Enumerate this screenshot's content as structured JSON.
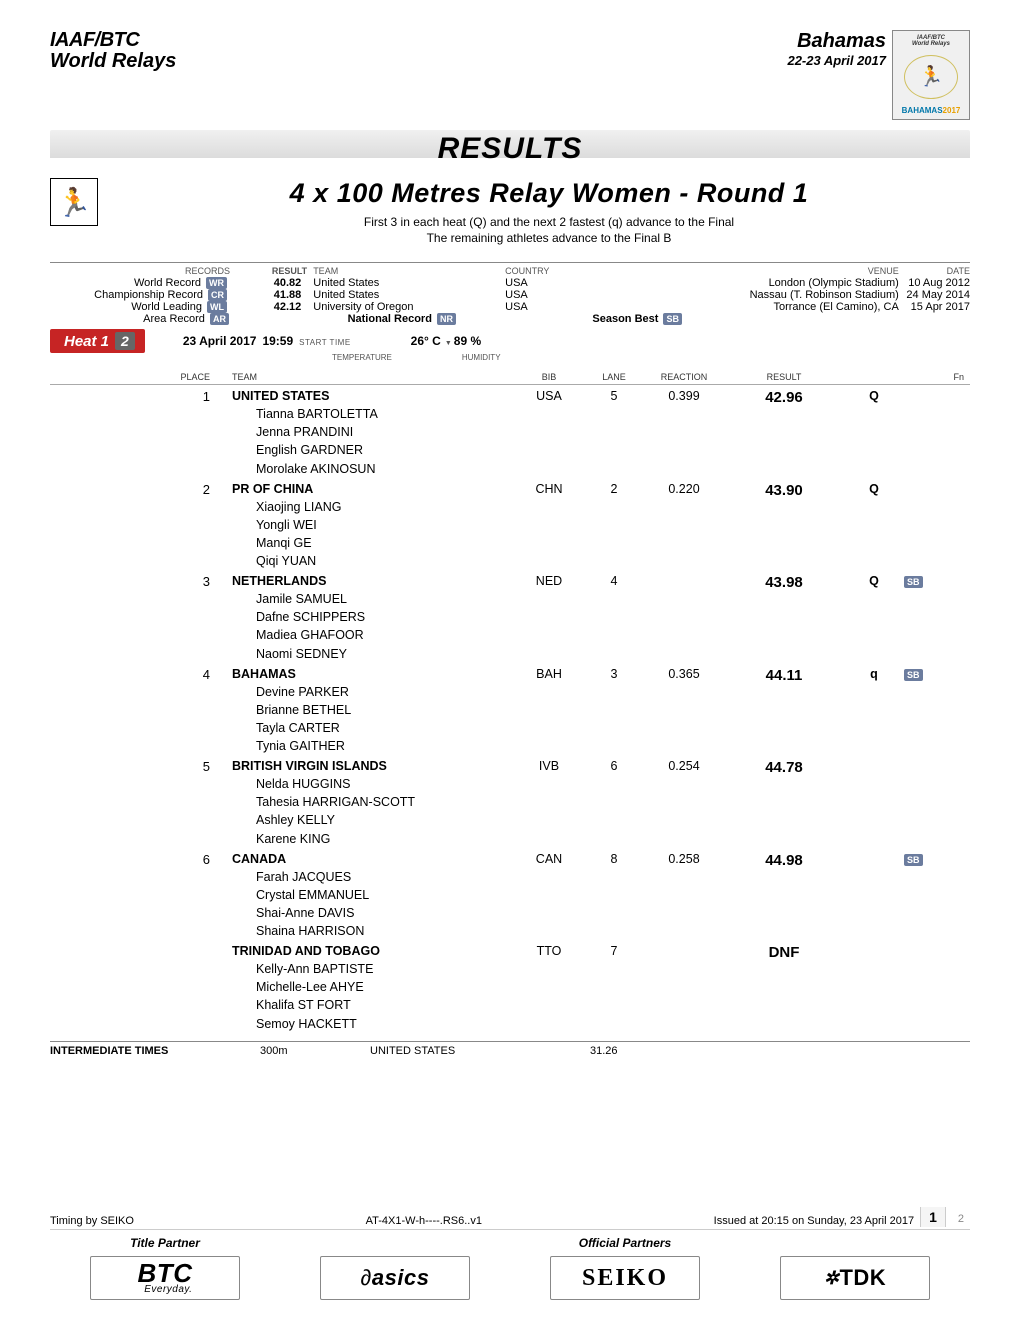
{
  "header": {
    "logo_line1": "IAAF/BTC",
    "logo_line2": "World Relays",
    "location": "Bahamas",
    "dates": "22-23 April 2017",
    "emblem_top1": "IAAF/BTC",
    "emblem_top2": "World Relays",
    "emblem_bottom": "BAHAMAS",
    "emblem_year": "2017"
  },
  "titles": {
    "results": "RESULTS",
    "event": "4 x 100 Metres Relay Women - Round 1",
    "note1": "First 3 in each heat (Q) and the next 2 fastest (q) advance to the Final",
    "note2": "The remaining athletes advance to the Final B"
  },
  "records_cols": {
    "records": "RECORDS",
    "result": "RESULT",
    "team": "TEAM",
    "country": "COUNTRY",
    "venue": "VENUE",
    "date": "DATE"
  },
  "records": [
    {
      "label": "World Record",
      "badge": "WR",
      "result": "40.82",
      "team": "United States",
      "country": "USA",
      "venue": "London (Olympic Stadium)",
      "date": "10 Aug 2012"
    },
    {
      "label": "Championship Record",
      "badge": "CR",
      "result": "41.88",
      "team": "United States",
      "country": "USA",
      "venue": "Nassau (T. Robinson Stadium)",
      "date": "24 May 2014"
    },
    {
      "label": "World Leading",
      "badge": "WL",
      "result": "42.12",
      "team": "University of Oregon",
      "country": "USA",
      "venue": "Torrance (El Camino), CA",
      "date": "15 Apr 2017"
    }
  ],
  "record_extra": {
    "area": "Area Record",
    "area_badge": "AR",
    "national": "National Record",
    "national_badge": "NR",
    "season": "Season Best",
    "season_badge": "SB"
  },
  "heat": {
    "label": "Heat 1",
    "num": "2",
    "date": "23 April  2017",
    "time": "19:59",
    "time_lbl": "START TIME",
    "temp": "26° C",
    "temp_lbl": "TEMPERATURE",
    "hum": "89 %",
    "hum_lbl": "HUMIDITY"
  },
  "table_cols": {
    "place": "PLACE",
    "team": "TEAM",
    "bib": "BIB",
    "lane": "LANE",
    "reaction": "REACTION",
    "result": "RESULT",
    "fn": "Fn"
  },
  "rows": [
    {
      "place": "1",
      "team": "UNITED STATES",
      "athletes": [
        "Tianna BARTOLETTA",
        "Jenna PRANDINI",
        "English GARDNER",
        "Morolake AKINOSUN"
      ],
      "bib": "USA",
      "lane": "5",
      "reaction": "0.399",
      "result": "42.96",
      "q": "Q",
      "sb": false
    },
    {
      "place": "2",
      "team": "PR OF CHINA",
      "athletes": [
        "Xiaojing LIANG",
        "Yongli WEI",
        "Manqi GE",
        "Qiqi YUAN"
      ],
      "bib": "CHN",
      "lane": "2",
      "reaction": "0.220",
      "result": "43.90",
      "q": "Q",
      "sb": false
    },
    {
      "place": "3",
      "team": "NETHERLANDS",
      "athletes": [
        "Jamile SAMUEL",
        "Dafne SCHIPPERS",
        "Madiea GHAFOOR",
        "Naomi SEDNEY"
      ],
      "bib": "NED",
      "lane": "4",
      "reaction": "",
      "result": "43.98",
      "q": "Q",
      "sb": true
    },
    {
      "place": "4",
      "team": "BAHAMAS",
      "athletes": [
        "Devine PARKER",
        "Brianne BETHEL",
        "Tayla CARTER",
        "Tynia GAITHER"
      ],
      "bib": "BAH",
      "lane": "3",
      "reaction": "0.365",
      "result": "44.11",
      "q": "q",
      "sb": true
    },
    {
      "place": "5",
      "team": "BRITISH VIRGIN ISLANDS",
      "athletes": [
        "Nelda HUGGINS",
        "Tahesia HARRIGAN-SCOTT",
        "Ashley KELLY",
        "Karene KING"
      ],
      "bib": "IVB",
      "lane": "6",
      "reaction": "0.254",
      "result": "44.78",
      "q": "",
      "sb": false
    },
    {
      "place": "6",
      "team": "CANADA",
      "athletes": [
        "Farah JACQUES",
        "Crystal EMMANUEL",
        "Shai-Anne DAVIS",
        "Shaina HARRISON"
      ],
      "bib": "CAN",
      "lane": "8",
      "reaction": "0.258",
      "result": "44.98",
      "q": "",
      "sb": true
    },
    {
      "place": "",
      "team": "TRINIDAD AND TOBAGO",
      "athletes": [
        "Kelly-Ann BAPTISTE",
        "Michelle-Lee AHYE",
        "Khalifa ST FORT",
        "Semoy HACKETT"
      ],
      "bib": "TTO",
      "lane": "7",
      "reaction": "",
      "result": "DNF",
      "q": "",
      "sb": false
    }
  ],
  "intermediate": {
    "label": "INTERMEDIATE TIMES",
    "dist": "300m",
    "team": "UNITED STATES",
    "value": "31.26"
  },
  "footer": {
    "timing": "Timing by SEIKO",
    "code": "AT-4X1-W-h----.RS6..v1",
    "issued": "Issued at 20:15 on Sunday, 23 April  2017",
    "page_current": "1",
    "page_total": "2",
    "title_partner": "Title Partner",
    "official_partners": "Official Partners",
    "sponsors": {
      "btc": "BTC",
      "btc_sub": "Everyday.",
      "asics": "asics",
      "seiko": "SEIKO",
      "tdk": "TDK"
    }
  },
  "colors": {
    "badge_bg": "#6b7c9e",
    "heat_bg": "#c62424",
    "grey_bar": "#dcdcdc"
  }
}
